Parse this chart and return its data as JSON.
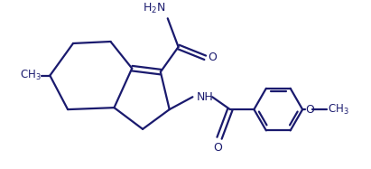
{
  "bg_color": "#ffffff",
  "line_color": "#1a1a6e",
  "line_width": 1.6,
  "figsize": [
    4.11,
    1.87
  ],
  "dpi": 100,
  "xlim": [
    0,
    10
  ],
  "ylim": [
    0,
    4.5
  ]
}
